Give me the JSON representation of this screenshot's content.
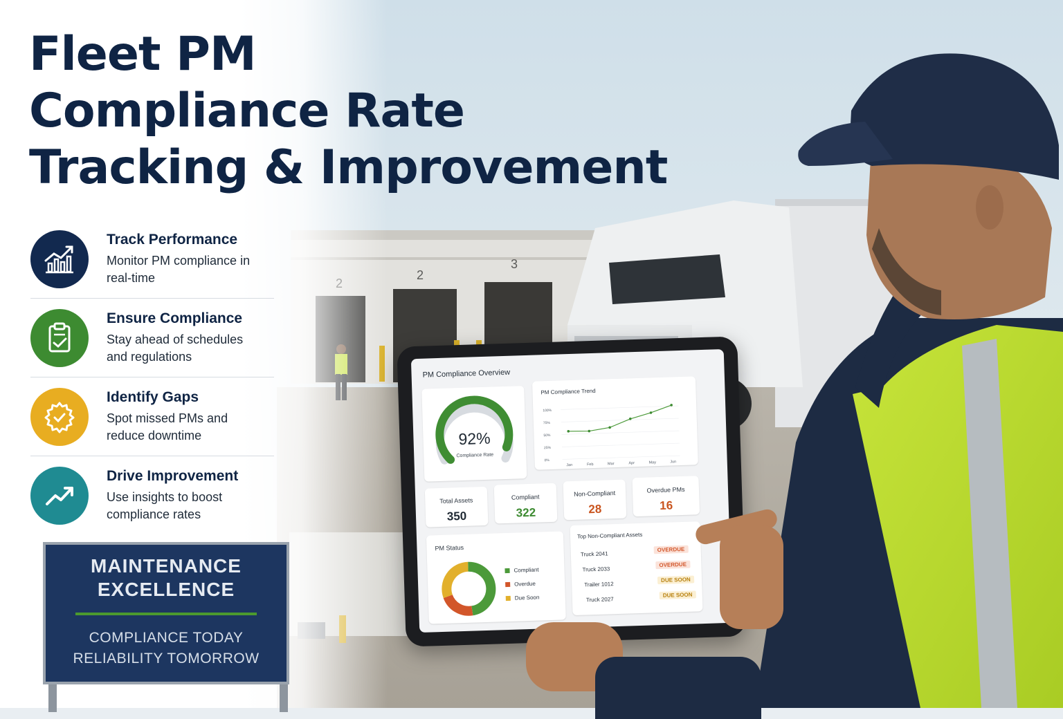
{
  "headline": {
    "line1": "Fleet PM",
    "line2": "Compliance Rate",
    "line3": "Tracking & Improvement"
  },
  "features": [
    {
      "title": "Track Performance",
      "desc": "Monitor PM compliance in real-time",
      "icon": "chart-up-icon",
      "color": "#12294f"
    },
    {
      "title": "Ensure Compliance",
      "desc": "Stay ahead of schedules and regulations",
      "icon": "clipboard-check-icon",
      "color": "#3d8b31"
    },
    {
      "title": "Identify Gaps",
      "desc": "Spot missed PMs and reduce downtime",
      "icon": "gear-check-icon",
      "color": "#e8ad21"
    },
    {
      "title": "Drive Improvement",
      "desc": "Use insights to boost compliance rates",
      "icon": "trend-arrow-icon",
      "color": "#1f8b92"
    }
  ],
  "sign": {
    "top_line1": "MAINTENANCE",
    "top_line2": "EXCELLENCE",
    "bottom_line1": "COMPLIANCE TODAY",
    "bottom_line2": "RELIABILITY TOMORROW"
  },
  "background": {
    "bay_numbers": [
      "2",
      "2",
      "3"
    ]
  },
  "tablet": {
    "title": "PM Compliance Overview",
    "gauge": {
      "value": "92%",
      "label": "Compliance Rate",
      "fraction": 0.92
    },
    "trend": {
      "title": "PM Compliance Trend",
      "y_ticks": [
        "100%",
        "75%",
        "50%",
        "25%",
        "0%"
      ],
      "months": [
        "Jan",
        "Feb",
        "Mar",
        "Apr",
        "May",
        "Jun"
      ],
      "values": [
        56,
        55,
        61,
        77,
        88,
        102
      ]
    },
    "kpis": [
      {
        "label": "Total Assets",
        "value": "350",
        "color": "#1f2933"
      },
      {
        "label": "Compliant",
        "value": "322",
        "color": "#3d8b31"
      },
      {
        "label": "Non-Compliant",
        "value": "28",
        "color": "#c9541e"
      },
      {
        "label": "Overdue PMs",
        "value": "16",
        "color": "#c9541e"
      }
    ],
    "pm_status": {
      "title": "PM Status",
      "legend": [
        {
          "label": "Compliant",
          "color": "#4c9a3a"
        },
        {
          "label": "Overdue",
          "color": "#d2562a"
        },
        {
          "label": "Due Soon",
          "color": "#e2b02c"
        }
      ],
      "shares": [
        0.48,
        0.22,
        0.3
      ]
    },
    "top_noncompliant": {
      "title": "Top Non-Compliant Assets",
      "rows": [
        {
          "asset": "Truck 2041",
          "status": "OVERDUE",
          "color": "#d2562a",
          "bg": "#fbe3da"
        },
        {
          "asset": "Truck 2033",
          "status": "OVERDUE",
          "color": "#d2562a",
          "bg": "#fbe3da"
        },
        {
          "asset": "Trailer 1012",
          "status": "DUE SOON",
          "color": "#b7810f",
          "bg": "#fbefd3"
        },
        {
          "asset": "Truck 2027",
          "status": "DUE SOON",
          "color": "#b7810f",
          "bg": "#fbefd3"
        }
      ]
    }
  }
}
